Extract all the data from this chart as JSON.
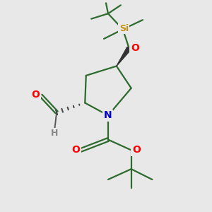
{
  "background_color": "#e8e8e8",
  "atom_colors": {
    "C": "#2d6a2d",
    "N": "#0000cc",
    "O": "#ff0000",
    "Si": "#c8900a",
    "H": "#888888"
  },
  "bond_color": "#2d6a2d",
  "bond_width": 1.6,
  "figsize": [
    3.0,
    3.0
  ],
  "dpi": 100
}
